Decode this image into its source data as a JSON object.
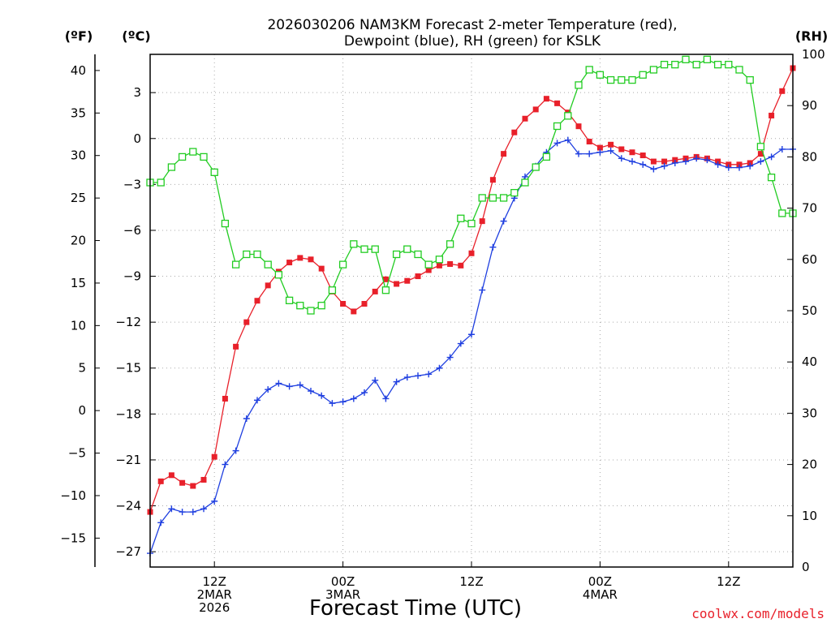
{
  "chart_data": {
    "type": "line",
    "title": [
      "2026030206 NAM3KM Forecast 2-meter Temperature (red),",
      "Dewpoint (blue), RH (green) for KSLK"
    ],
    "xlabel": "Forecast Time (UTC)",
    "unit_labels": {
      "fahrenheit": "(ºF)",
      "celsius": "(ºC)",
      "rh": "(RH)"
    },
    "watermark": "coolwx.com/models",
    "x_hours": [
      6,
      66
    ],
    "x_ticks": [
      {
        "hour": 12,
        "lines": [
          "12Z",
          "2MAR",
          "2026"
        ]
      },
      {
        "hour": 24,
        "lines": [
          "00Z",
          "3MAR"
        ]
      },
      {
        "hour": 36,
        "lines": [
          "12Z"
        ]
      },
      {
        "hour": 48,
        "lines": [
          "00Z",
          "4MAR"
        ]
      },
      {
        "hour": 60,
        "lines": [
          "12Z"
        ]
      }
    ],
    "celsius_range": [
      -28,
      5.5
    ],
    "celsius_ticks": [
      3,
      0,
      -3,
      -6,
      -9,
      -12,
      -15,
      -18,
      -21,
      -24,
      -27
    ],
    "fahrenheit_ticks": [
      40,
      35,
      30,
      25,
      20,
      15,
      10,
      5,
      0,
      -5,
      -10,
      -15
    ],
    "rh_range": [
      0,
      100
    ],
    "rh_ticks": [
      100,
      90,
      80,
      70,
      60,
      50,
      40,
      30,
      20,
      10,
      0
    ],
    "hours": [
      6,
      7,
      8,
      9,
      10,
      11,
      12,
      13,
      14,
      15,
      16,
      17,
      18,
      19,
      20,
      21,
      22,
      23,
      24,
      25,
      26,
      27,
      28,
      29,
      30,
      31,
      32,
      33,
      34,
      35,
      36,
      37,
      38,
      39,
      40,
      41,
      42,
      43,
      44,
      45,
      46,
      47,
      48,
      49,
      50,
      51,
      52,
      53,
      54,
      55,
      56,
      57,
      58,
      59,
      60,
      61,
      62,
      63,
      64,
      65,
      66
    ],
    "series": [
      {
        "name": "Temperature",
        "unit": "C",
        "axis": "celsius",
        "color": "#e8202a",
        "marker": "filled-square",
        "values": [
          -24.4,
          -22.4,
          -22.0,
          -22.5,
          -22.7,
          -22.3,
          -20.8,
          -17.0,
          -13.6,
          -12.0,
          -10.6,
          -9.6,
          -8.7,
          -8.1,
          -7.8,
          -7.9,
          -8.5,
          -10.0,
          -10.8,
          -11.3,
          -10.8,
          -10.0,
          -9.2,
          -9.5,
          -9.3,
          -9.0,
          -8.6,
          -8.3,
          -8.2,
          -8.3,
          -7.5,
          -5.4,
          -2.7,
          -1.0,
          0.4,
          1.3,
          1.9,
          2.6,
          2.3,
          1.7,
          0.8,
          -0.2,
          -0.6,
          -0.4,
          -0.7,
          -0.9,
          -1.1,
          -1.5,
          -1.5,
          -1.4,
          -1.3,
          -1.2,
          -1.3,
          -1.5,
          -1.7,
          -1.7,
          -1.6,
          -1.0,
          1.5,
          3.1,
          4.6
        ]
      },
      {
        "name": "Dewpoint",
        "unit": "C",
        "axis": "celsius",
        "color": "#1f3fe0",
        "marker": "plus",
        "values": [
          -27.1,
          -25.1,
          -24.2,
          -24.4,
          -24.4,
          -24.2,
          -23.7,
          -21.3,
          -20.4,
          -18.3,
          -17.1,
          -16.4,
          -16.0,
          -16.2,
          -16.1,
          -16.5,
          -16.8,
          -17.3,
          -17.2,
          -17.0,
          -16.6,
          -15.8,
          -17.0,
          -15.9,
          -15.6,
          -15.5,
          -15.4,
          -15.0,
          -14.3,
          -13.4,
          -12.8,
          -9.9,
          -7.1,
          -5.4,
          -3.9,
          -2.5,
          -1.8,
          -0.9,
          -0.3,
          -0.1,
          -1.0,
          -1.0,
          -0.9,
          -0.8,
          -1.3,
          -1.5,
          -1.7,
          -2.0,
          -1.8,
          -1.6,
          -1.5,
          -1.3,
          -1.4,
          -1.7,
          -1.9,
          -1.9,
          -1.8,
          -1.5,
          -1.2,
          -0.7,
          -0.7
        ]
      },
      {
        "name": "RH",
        "unit": "%",
        "axis": "rh",
        "color": "#22cc22",
        "marker": "open-square",
        "values": [
          75,
          75,
          78,
          80,
          81,
          80,
          77,
          67,
          59,
          61,
          61,
          59,
          57,
          52,
          51,
          50,
          51,
          54,
          59,
          63,
          62,
          62,
          54,
          61,
          62,
          61,
          59,
          60,
          63,
          68,
          67,
          72,
          72,
          72,
          73,
          75,
          78,
          80,
          86,
          88,
          94,
          97,
          96,
          95,
          95,
          95,
          96,
          97,
          98,
          98,
          99,
          98,
          99,
          98,
          98,
          97,
          95,
          82,
          76,
          69,
          69
        ]
      }
    ]
  }
}
